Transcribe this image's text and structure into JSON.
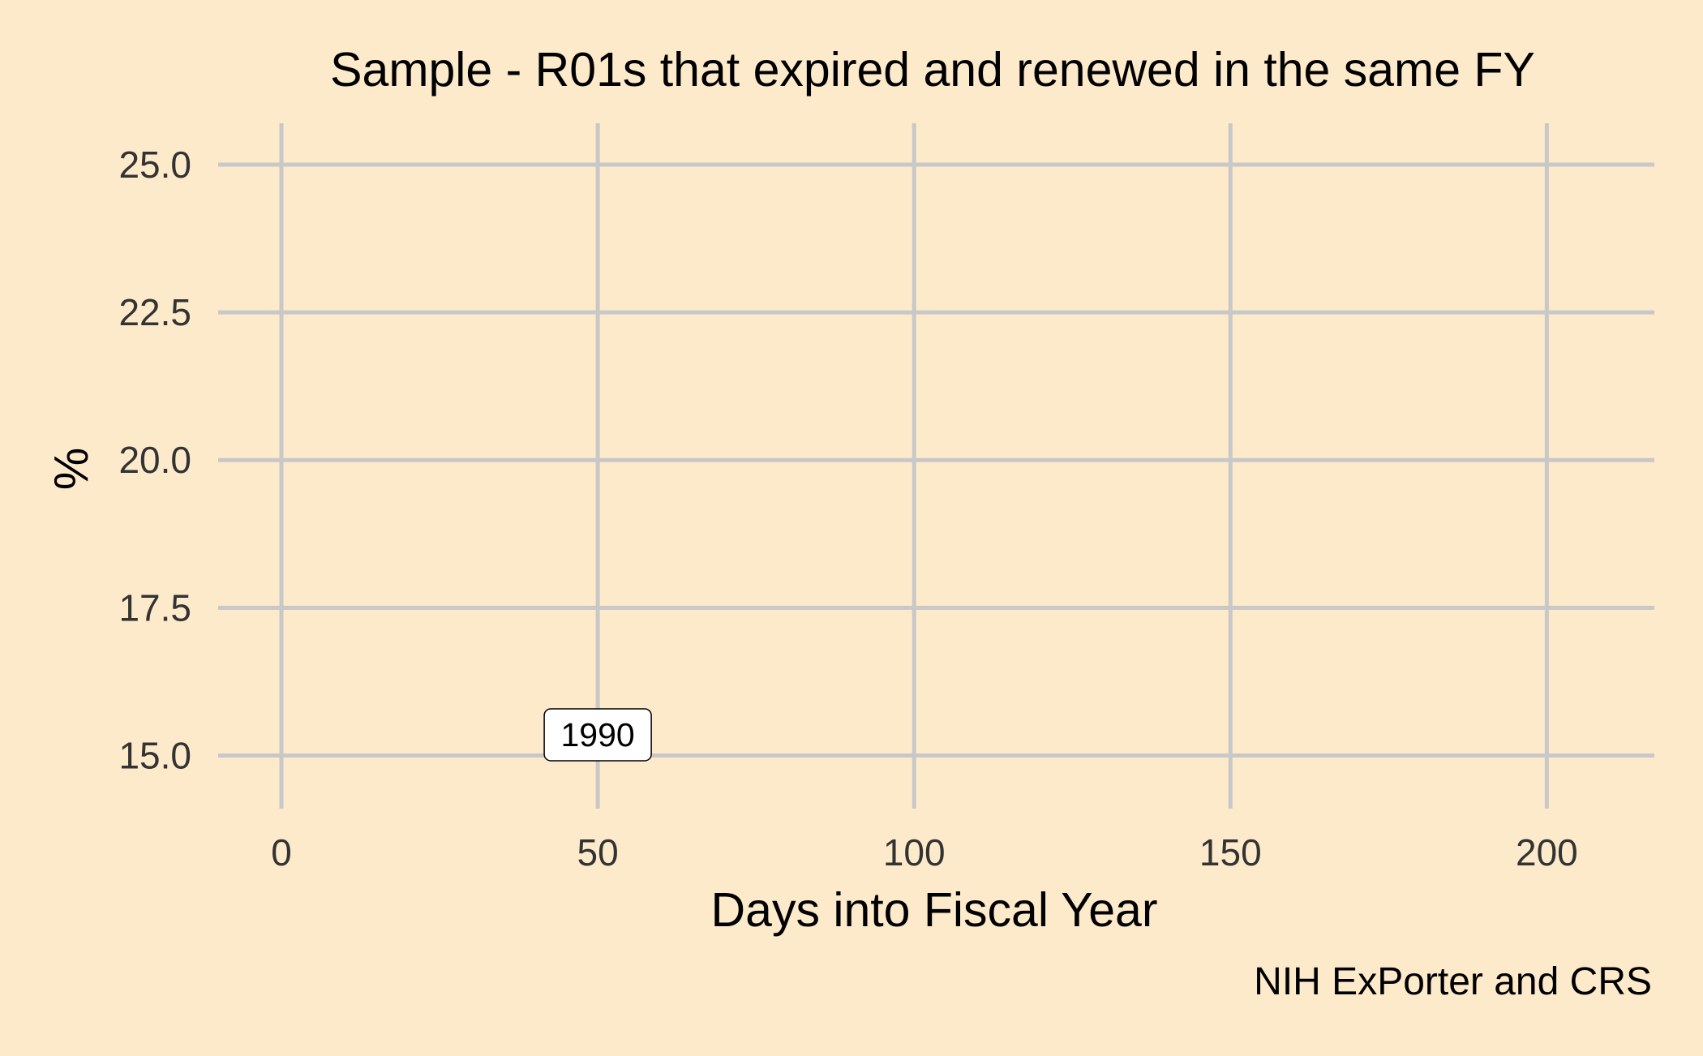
{
  "chart_data": {
    "type": "scatter",
    "title": "Sample - R01s that expired and renewed in the same FY",
    "xlabel": "Days into Fiscal Year",
    "ylabel": "%",
    "caption": "NIH ExPorter and CRS",
    "xlim": [
      -10,
      217
    ],
    "ylim": [
      14.1,
      25.7
    ],
    "x_ticks": [
      0,
      50,
      100,
      150,
      200
    ],
    "x_tick_labels": [
      "0",
      "50",
      "100",
      "150",
      "200"
    ],
    "y_ticks": [
      15.0,
      17.5,
      20.0,
      22.5,
      25.0
    ],
    "y_tick_labels": [
      "15.0",
      "17.5",
      "20.0",
      "22.5",
      "25.0"
    ],
    "grid": true,
    "background_color": "#fdeaca",
    "grid_color": "#c8c8c8",
    "series": [],
    "annotations": [
      {
        "x": 50,
        "y": 15.35,
        "text": "1990"
      }
    ]
  }
}
